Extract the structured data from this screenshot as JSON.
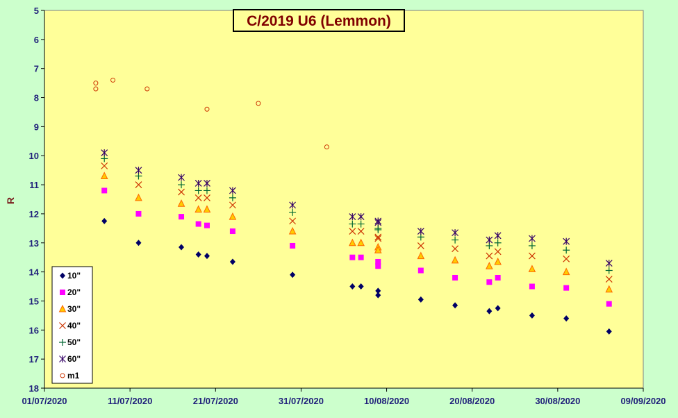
{
  "chart_data": {
    "type": "scatter",
    "title": "C/2019 U6 (Lemmon)",
    "xlabel": "",
    "ylabel": "R",
    "x_axis": {
      "min": "2020-07-01",
      "max": "2020-09-09",
      "tick_labels": [
        "01/07/2020",
        "11/07/2020",
        "21/07/2020",
        "31/07/2020",
        "10/08/2020",
        "20/08/2020",
        "30/08/2020",
        "09/09/2020"
      ]
    },
    "y_axis": {
      "min": 5,
      "max": 18,
      "inverted": true,
      "step": 1
    },
    "grid": false,
    "legend_position": "bottom-left",
    "colors": {
      "background": "#ccffcc",
      "plot_area": "#ffff99",
      "axis_text": "#1f1f7a",
      "title_text": "#800000",
      "ylabel_text": "#7a1f1f"
    },
    "series": [
      {
        "name": "10\"",
        "marker": "diamond",
        "color": "#000066",
        "points": [
          [
            "2020-07-08",
            12.25
          ],
          [
            "2020-07-12",
            13.0
          ],
          [
            "2020-07-17",
            13.15
          ],
          [
            "2020-07-19",
            13.4
          ],
          [
            "2020-07-20",
            13.45
          ],
          [
            "2020-07-23",
            13.65
          ],
          [
            "2020-07-30",
            14.1
          ],
          [
            "2020-08-06",
            14.5
          ],
          [
            "2020-08-07",
            14.5
          ],
          [
            "2020-08-09",
            14.65
          ],
          [
            "2020-08-09",
            14.8
          ],
          [
            "2020-08-14",
            14.95
          ],
          [
            "2020-08-18",
            15.15
          ],
          [
            "2020-08-22",
            15.35
          ],
          [
            "2020-08-23",
            15.25
          ],
          [
            "2020-08-27",
            15.5
          ],
          [
            "2020-08-31",
            15.6
          ],
          [
            "2020-09-05",
            16.05
          ]
        ]
      },
      {
        "name": "20\"",
        "marker": "square",
        "color": "#ff00ff",
        "points": [
          [
            "2020-07-08",
            11.2
          ],
          [
            "2020-07-12",
            12.0
          ],
          [
            "2020-07-17",
            12.1
          ],
          [
            "2020-07-19",
            12.35
          ],
          [
            "2020-07-20",
            12.4
          ],
          [
            "2020-07-23",
            12.6
          ],
          [
            "2020-07-30",
            13.1
          ],
          [
            "2020-08-06",
            13.5
          ],
          [
            "2020-08-07",
            13.5
          ],
          [
            "2020-08-09",
            13.65
          ],
          [
            "2020-08-09",
            13.8
          ],
          [
            "2020-08-14",
            13.95
          ],
          [
            "2020-08-18",
            14.2
          ],
          [
            "2020-08-22",
            14.35
          ],
          [
            "2020-08-23",
            14.2
          ],
          [
            "2020-08-27",
            14.5
          ],
          [
            "2020-08-31",
            14.55
          ],
          [
            "2020-09-05",
            15.1
          ]
        ]
      },
      {
        "name": "30\"",
        "marker": "triangle",
        "color": "#ff6600",
        "points": [
          [
            "2020-07-08",
            10.7
          ],
          [
            "2020-07-12",
            11.45
          ],
          [
            "2020-07-17",
            11.65
          ],
          [
            "2020-07-19",
            11.85
          ],
          [
            "2020-07-20",
            11.85
          ],
          [
            "2020-07-23",
            12.1
          ],
          [
            "2020-07-30",
            12.6
          ],
          [
            "2020-08-06",
            13.0
          ],
          [
            "2020-08-07",
            13.0
          ],
          [
            "2020-08-09",
            13.15
          ],
          [
            "2020-08-09",
            13.25
          ],
          [
            "2020-08-14",
            13.45
          ],
          [
            "2020-08-18",
            13.6
          ],
          [
            "2020-08-22",
            13.8
          ],
          [
            "2020-08-23",
            13.65
          ],
          [
            "2020-08-27",
            13.9
          ],
          [
            "2020-08-31",
            14.0
          ],
          [
            "2020-09-05",
            14.6
          ]
        ]
      },
      {
        "name": "40\"",
        "marker": "x",
        "color": "#cc3300",
        "points": [
          [
            "2020-07-08",
            10.35
          ],
          [
            "2020-07-12",
            11.0
          ],
          [
            "2020-07-17",
            11.25
          ],
          [
            "2020-07-19",
            11.45
          ],
          [
            "2020-07-20",
            11.45
          ],
          [
            "2020-07-23",
            11.7
          ],
          [
            "2020-07-30",
            12.25
          ],
          [
            "2020-08-06",
            12.6
          ],
          [
            "2020-08-07",
            12.6
          ],
          [
            "2020-08-09",
            12.8
          ],
          [
            "2020-08-09",
            12.85
          ],
          [
            "2020-08-14",
            13.1
          ],
          [
            "2020-08-18",
            13.2
          ],
          [
            "2020-08-22",
            13.45
          ],
          [
            "2020-08-23",
            13.3
          ],
          [
            "2020-08-27",
            13.45
          ],
          [
            "2020-08-31",
            13.55
          ],
          [
            "2020-09-05",
            14.25
          ]
        ]
      },
      {
        "name": "50\"",
        "marker": "plus",
        "color": "#006633",
        "points": [
          [
            "2020-07-08",
            10.1
          ],
          [
            "2020-07-12",
            10.7
          ],
          [
            "2020-07-17",
            11.0
          ],
          [
            "2020-07-19",
            11.2
          ],
          [
            "2020-07-20",
            11.2
          ],
          [
            "2020-07-23",
            11.45
          ],
          [
            "2020-07-30",
            11.95
          ],
          [
            "2020-08-06",
            12.35
          ],
          [
            "2020-08-07",
            12.35
          ],
          [
            "2020-08-09",
            12.55
          ],
          [
            "2020-08-09",
            12.5
          ],
          [
            "2020-08-14",
            12.8
          ],
          [
            "2020-08-18",
            12.9
          ],
          [
            "2020-08-22",
            13.1
          ],
          [
            "2020-08-23",
            13.0
          ],
          [
            "2020-08-27",
            13.1
          ],
          [
            "2020-08-31",
            13.25
          ],
          [
            "2020-09-05",
            13.95
          ]
        ]
      },
      {
        "name": "60\"",
        "marker": "star",
        "color": "#330066",
        "points": [
          [
            "2020-07-08",
            9.9
          ],
          [
            "2020-07-12",
            10.5
          ],
          [
            "2020-07-17",
            10.75
          ],
          [
            "2020-07-19",
            10.95
          ],
          [
            "2020-07-20",
            10.95
          ],
          [
            "2020-07-23",
            11.2
          ],
          [
            "2020-07-30",
            11.7
          ],
          [
            "2020-08-06",
            12.1
          ],
          [
            "2020-08-07",
            12.1
          ],
          [
            "2020-08-09",
            12.25
          ],
          [
            "2020-08-09",
            12.3
          ],
          [
            "2020-08-14",
            12.6
          ],
          [
            "2020-08-18",
            12.65
          ],
          [
            "2020-08-22",
            12.9
          ],
          [
            "2020-08-23",
            12.75
          ],
          [
            "2020-08-27",
            12.85
          ],
          [
            "2020-08-31",
            12.95
          ],
          [
            "2020-09-05",
            13.7
          ]
        ]
      },
      {
        "name": "m1",
        "marker": "circle",
        "color": "#cc3300",
        "points": [
          [
            "2020-07-07",
            7.5
          ],
          [
            "2020-07-07",
            7.7
          ],
          [
            "2020-07-09",
            7.4
          ],
          [
            "2020-07-13",
            7.7
          ],
          [
            "2020-07-20",
            8.4
          ],
          [
            "2020-07-26",
            8.2
          ],
          [
            "2020-08-03",
            9.7
          ]
        ]
      }
    ]
  }
}
